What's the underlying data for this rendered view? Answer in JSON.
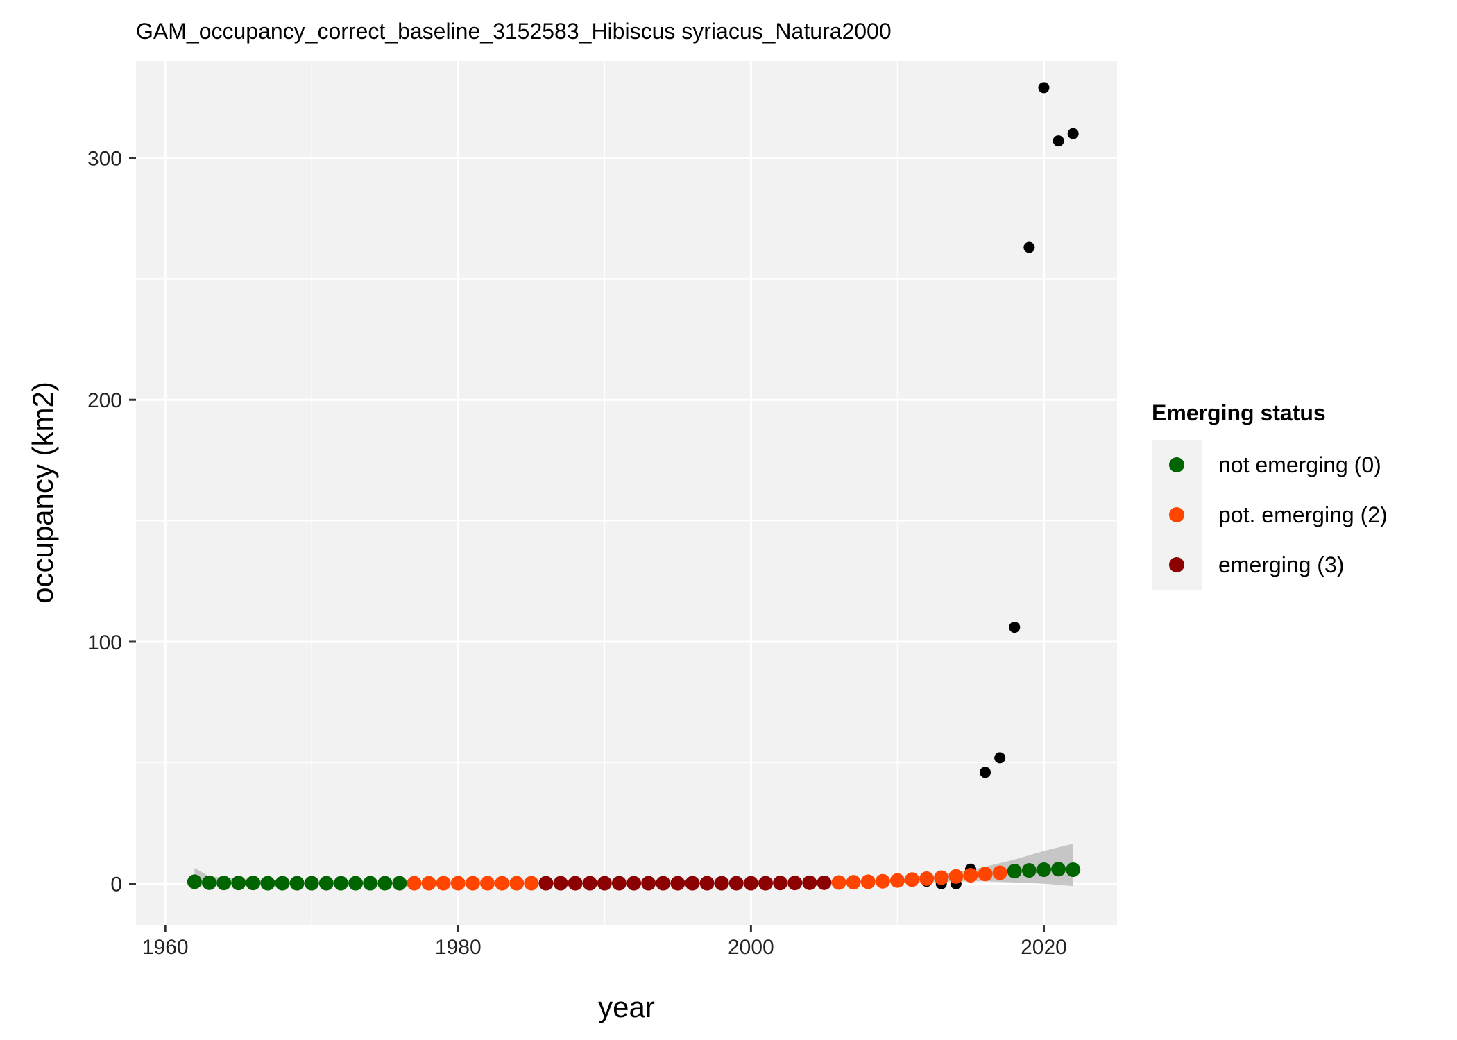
{
  "chart_data": {
    "type": "scatter",
    "title": "GAM_occupancy_correct_baseline_3152583_Hibiscus syriacus_Natura2000",
    "xlabel": "year",
    "ylabel": "occupancy (km2)",
    "xlim": [
      1958,
      2025
    ],
    "ylim": [
      -17,
      340
    ],
    "x_ticks": [
      1960,
      1980,
      2000,
      2020
    ],
    "y_ticks": [
      0,
      100,
      200,
      300
    ],
    "grid": true,
    "legend": {
      "title": "Emerging status",
      "placement": "right",
      "entries": [
        {
          "label": "not emerging (0)",
          "color": "#006400"
        },
        {
          "label": "pot. emerging (2)",
          "color": "#FF4500"
        },
        {
          "label": "emerging (3)",
          "color": "#8B0000"
        }
      ]
    },
    "colors": {
      "panel_background": "#F2F2F2",
      "grid": "#FFFFFF",
      "observed_points": "#000000",
      "confidence_band": "#BEBEBE"
    },
    "observed": {
      "x": [
        2011,
        2012,
        2013,
        2014,
        2015,
        2016,
        2017,
        2018,
        2019,
        2020,
        2021,
        2022
      ],
      "y": [
        1,
        1,
        0,
        0,
        6,
        46,
        52,
        106,
        263,
        329,
        307,
        310
      ]
    },
    "series": [
      {
        "name": "not emerging (0)",
        "x": [
          1962,
          1963,
          1964,
          1965,
          1966,
          1967,
          1968,
          1969,
          1970,
          1971,
          1972,
          1973,
          1974,
          1975,
          1976,
          2018,
          2019,
          2020,
          2021,
          2022
        ],
        "y": [
          0.8,
          0.4,
          0.3,
          0.3,
          0.3,
          0.2,
          0.2,
          0.2,
          0.2,
          0.2,
          0.2,
          0.2,
          0.2,
          0.2,
          0.2,
          5.2,
          5.5,
          5.8,
          6.0,
          5.8
        ]
      },
      {
        "name": "pot. emerging (2)",
        "x": [
          1977,
          1978,
          1979,
          1980,
          1981,
          1982,
          1983,
          1984,
          1985,
          2006,
          2007,
          2008,
          2009,
          2010,
          2011,
          2012,
          2013,
          2014,
          2015,
          2016,
          2017
        ],
        "y": [
          0.2,
          0.2,
          0.2,
          0.2,
          0.2,
          0.2,
          0.2,
          0.2,
          0.2,
          0.5,
          0.6,
          0.8,
          1.0,
          1.3,
          1.7,
          2.1,
          2.5,
          3.0,
          3.5,
          4.0,
          4.5
        ]
      },
      {
        "name": "emerging (3)",
        "x": [
          1986,
          1987,
          1988,
          1989,
          1990,
          1991,
          1992,
          1993,
          1994,
          1995,
          1996,
          1997,
          1998,
          1999,
          2000,
          2001,
          2002,
          2003,
          2004,
          2005
        ],
        "y": [
          0.2,
          0.2,
          0.2,
          0.2,
          0.2,
          0.2,
          0.2,
          0.2,
          0.2,
          0.2,
          0.2,
          0.2,
          0.2,
          0.2,
          0.2,
          0.2,
          0.3,
          0.3,
          0.4,
          0.4
        ]
      }
    ],
    "confidence_band": {
      "x": [
        1962,
        1963,
        1970,
        1980,
        1990,
        2000,
        2005,
        2010,
        2014,
        2016,
        2018,
        2020,
        2022
      ],
      "lower": [
        -1.5,
        -0.3,
        0,
        0,
        0,
        0,
        0.1,
        0.5,
        1.0,
        1.0,
        0.5,
        0,
        -1.0
      ],
      "upper": [
        6.5,
        3.0,
        0.5,
        0.4,
        0.4,
        0.5,
        0.8,
        2.0,
        4.5,
        7.0,
        10.0,
        13.5,
        16.5
      ]
    }
  }
}
